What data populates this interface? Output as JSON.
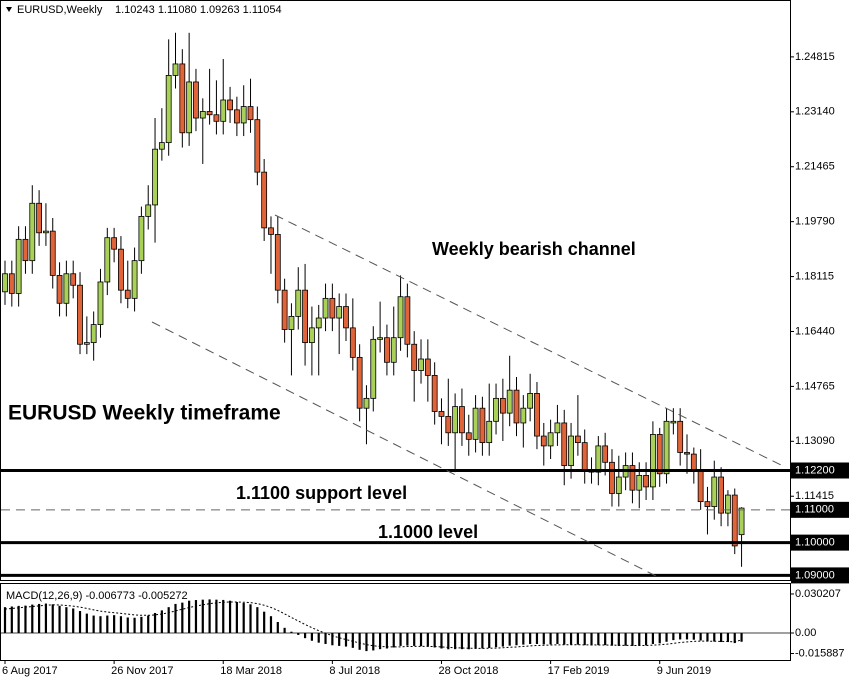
{
  "chart_data": [
    {
      "type": "candlestick",
      "title": "EURUSD,Weekly",
      "subtitle": "1.10243 1.11080 1.09263 1.11054",
      "annotations": [
        "Weekly bearish channel",
        "EURUSD Weekly timeframe",
        "1.1100 support level",
        "1.1000 level"
      ],
      "colors": {
        "up": "#a9d15a",
        "down": "#e0643a"
      },
      "ylim": [
        1.0886,
        1.2655
      ],
      "yticks": [
        1.24815,
        {
          "value": 1.2314,
          "label": "1.23140"
        },
        1.21465,
        {
          "value": 1.1979,
          "label": "1.19790"
        },
        1.18115,
        {
          "value": 1.1644,
          "label": "1.16440"
        },
        1.14765,
        {
          "value": 1.1309,
          "label": "1.13090"
        },
        1.11415
      ],
      "levels": [
        {
          "value": 1.122,
          "label": "1.12200",
          "style": "solid"
        },
        {
          "value": 1.11,
          "label": "1.11000",
          "style": "dashed"
        },
        {
          "value": 1.1,
          "label": "1.10000",
          "style": "solid"
        },
        {
          "value": 1.09,
          "label": "1.09000",
          "style": "solid"
        }
      ],
      "open": [
        1.1765,
        1.182,
        1.176,
        1.1925,
        1.186,
        1.2035,
        1.1945,
        1.195,
        1.1815,
        1.173,
        1.182,
        1.1785,
        1.1605,
        1.161,
        1.1665,
        1.1795,
        1.193,
        1.1895,
        1.177,
        1.1745,
        1.186,
        1.1995,
        1.203,
        1.22,
        1.222,
        1.2425,
        1.246,
        1.225,
        1.2405,
        1.2295,
        1.2315,
        1.2305,
        1.2285,
        1.235,
        1.232,
        1.228,
        1.233,
        1.229,
        1.213,
        1.196,
        1.194,
        1.177,
        1.165,
        1.169,
        1.177,
        1.161,
        1.1655,
        1.1685,
        1.1745,
        1.1685,
        1.172,
        1.1655,
        1.1565,
        1.141,
        1.144,
        1.162,
        1.1625,
        1.155,
        1.1625,
        1.175,
        1.1605,
        1.1525,
        1.156,
        1.151,
        1.14,
        1.1385,
        1.1335,
        1.1415,
        1.1335,
        1.1315,
        1.141,
        1.1305,
        1.137,
        1.144,
        1.1395,
        1.1465,
        1.1365,
        1.141,
        1.1455,
        1.1325,
        1.1295,
        1.1335,
        1.1365,
        1.1235,
        1.1325,
        1.1305,
        1.122,
        1.1215,
        1.1295,
        1.1245,
        1.115,
        1.12,
        1.1235,
        1.116,
        1.1205,
        1.117,
        1.133,
        1.121,
        1.1365,
        1.137,
        1.1275,
        1.127,
        1.122,
        1.1125,
        1.111,
        1.12,
        1.109,
        1.1145,
        1.10243
      ],
      "high": [
        1.186,
        1.186,
        1.1965,
        1.1965,
        1.209,
        1.2075,
        1.2035,
        1.199,
        1.1855,
        1.186,
        1.186,
        1.1825,
        1.169,
        1.1705,
        1.1835,
        1.196,
        1.196,
        1.1935,
        1.186,
        1.19,
        1.2025,
        1.209,
        1.2295,
        1.2325,
        1.2535,
        1.2555,
        1.2505,
        1.2555,
        1.2445,
        1.2355,
        1.2445,
        1.241,
        1.2475,
        1.239,
        1.236,
        1.2395,
        1.2415,
        1.233,
        1.217,
        1.1995,
        1.1995,
        1.1805,
        1.173,
        1.184,
        1.185,
        1.172,
        1.1725,
        1.179,
        1.179,
        1.176,
        1.176,
        1.1745,
        1.1605,
        1.148,
        1.166,
        1.1735,
        1.1665,
        1.172,
        1.1815,
        1.179,
        1.1645,
        1.162,
        1.162,
        1.155,
        1.144,
        1.15,
        1.1455,
        1.147,
        1.139,
        1.145,
        1.1445,
        1.1485,
        1.1485,
        1.15,
        1.157,
        1.1505,
        1.145,
        1.1515,
        1.149,
        1.1365,
        1.1375,
        1.142,
        1.1405,
        1.1365,
        1.145,
        1.1345,
        1.126,
        1.1325,
        1.1335,
        1.1285,
        1.1265,
        1.1275,
        1.1275,
        1.1245,
        1.1245,
        1.137,
        1.135,
        1.141,
        1.141,
        1.141,
        1.133,
        1.129,
        1.1285,
        1.117,
        1.125,
        1.123,
        1.116,
        1.1165,
        1.1108
      ],
      "low": [
        1.1725,
        1.172,
        1.172,
        1.182,
        1.182,
        1.1905,
        1.1905,
        1.1775,
        1.169,
        1.169,
        1.1745,
        1.1575,
        1.1575,
        1.1555,
        1.1625,
        1.1755,
        1.1855,
        1.173,
        1.1715,
        1.1705,
        1.182,
        1.1955,
        1.1915,
        1.2165,
        1.218,
        1.2385,
        1.2205,
        1.221,
        1.2255,
        1.2155,
        1.2275,
        1.2245,
        1.2245,
        1.228,
        1.224,
        1.224,
        1.225,
        1.209,
        1.192,
        1.182,
        1.173,
        1.161,
        1.151,
        1.165,
        1.154,
        1.151,
        1.151,
        1.1645,
        1.1645,
        1.1575,
        1.1615,
        1.1525,
        1.137,
        1.13,
        1.14,
        1.158,
        1.151,
        1.151,
        1.1585,
        1.1565,
        1.143,
        1.1485,
        1.143,
        1.136,
        1.13,
        1.1295,
        1.1215,
        1.1295,
        1.1265,
        1.1275,
        1.1265,
        1.1265,
        1.133,
        1.131,
        1.1355,
        1.1325,
        1.129,
        1.137,
        1.1285,
        1.1235,
        1.1255,
        1.1295,
        1.1175,
        1.1195,
        1.1265,
        1.118,
        1.118,
        1.1175,
        1.1205,
        1.111,
        1.111,
        1.116,
        1.112,
        1.1105,
        1.113,
        1.113,
        1.117,
        1.118,
        1.133,
        1.1235,
        1.121,
        1.118,
        1.11,
        1.1025,
        1.107,
        1.105,
        1.105,
        1.0965,
        1.09263
      ],
      "close": [
        1.182,
        1.176,
        1.1925,
        1.186,
        1.2035,
        1.1945,
        1.195,
        1.1815,
        1.173,
        1.182,
        1.1785,
        1.1605,
        1.161,
        1.1665,
        1.1795,
        1.193,
        1.1895,
        1.177,
        1.1745,
        1.186,
        1.1995,
        1.203,
        1.22,
        1.222,
        1.2425,
        1.246,
        1.225,
        1.2405,
        1.2295,
        1.2315,
        1.2305,
        1.2285,
        1.235,
        1.232,
        1.228,
        1.233,
        1.229,
        1.213,
        1.196,
        1.194,
        1.177,
        1.165,
        1.169,
        1.177,
        1.161,
        1.1655,
        1.1685,
        1.1745,
        1.1685,
        1.172,
        1.1655,
        1.1565,
        1.141,
        1.144,
        1.162,
        1.1625,
        1.155,
        1.1625,
        1.175,
        1.1605,
        1.1525,
        1.156,
        1.151,
        1.14,
        1.1385,
        1.1335,
        1.1415,
        1.1335,
        1.1315,
        1.141,
        1.1305,
        1.137,
        1.144,
        1.1395,
        1.1465,
        1.1365,
        1.141,
        1.1455,
        1.1325,
        1.1295,
        1.1335,
        1.1365,
        1.1235,
        1.1325,
        1.1305,
        1.122,
        1.1215,
        1.1295,
        1.1245,
        1.115,
        1.12,
        1.1235,
        1.116,
        1.1205,
        1.117,
        1.133,
        1.121,
        1.137,
        1.137,
        1.1275,
        1.127,
        1.122,
        1.1125,
        1.111,
        1.12,
        1.109,
        1.1145,
        1.099,
        1.11054
      ]
    },
    {
      "type": "macd",
      "title": "MACD(12,26,9) -0.006773 -0.005272",
      "ylim": [
        -0.0209,
        0.0387
      ],
      "yticks": [
        0.030207,
        {
          "value": 0,
          "label": "0.00"
        },
        -0.015887
      ],
      "xticks": [
        {
          "value": 0,
          "label": "6 Aug 2017"
        },
        {
          "value": 16,
          "label": "26 Nov 2017"
        },
        {
          "value": 32,
          "label": "18 Mar 2018"
        },
        {
          "value": 48,
          "label": "8 Jul 2018"
        },
        {
          "value": 64,
          "label": "28 Oct 2018"
        },
        {
          "value": 80,
          "label": "17 Feb 2019"
        },
        {
          "value": 96,
          "label": "9 Jun 2019"
        }
      ],
      "values": [
        0.02,
        0.0205,
        0.021,
        0.0212,
        0.022,
        0.0225,
        0.0228,
        0.0222,
        0.021,
        0.02,
        0.019,
        0.017,
        0.015,
        0.0135,
        0.013,
        0.0135,
        0.0138,
        0.013,
        0.012,
        0.0118,
        0.0125,
        0.0135,
        0.0155,
        0.0175,
        0.02,
        0.0225,
        0.0235,
        0.025,
        0.0255,
        0.0258,
        0.026,
        0.0258,
        0.0256,
        0.025,
        0.024,
        0.0232,
        0.0222,
        0.02,
        0.0165,
        0.013,
        0.0085,
        0.004,
        0.001,
        -0.0015,
        -0.004,
        -0.006,
        -0.0075,
        -0.0085,
        -0.0095,
        -0.01,
        -0.0105,
        -0.0115,
        -0.013,
        -0.014,
        -0.0135,
        -0.0125,
        -0.012,
        -0.0112,
        -0.01,
        -0.0098,
        -0.01,
        -0.0102,
        -0.0105,
        -0.0112,
        -0.012,
        -0.0126,
        -0.0125,
        -0.0125,
        -0.0126,
        -0.0122,
        -0.012,
        -0.0116,
        -0.011,
        -0.0105,
        -0.0098,
        -0.0095,
        -0.009,
        -0.0085,
        -0.0085,
        -0.0088,
        -0.0088,
        -0.0085,
        -0.009,
        -0.009,
        -0.009,
        -0.0094,
        -0.0096,
        -0.0094,
        -0.0094,
        -0.0098,
        -0.01,
        -0.0098,
        -0.01,
        -0.0098,
        -0.0096,
        -0.0085,
        -0.008,
        -0.0068,
        -0.0055,
        -0.005,
        -0.005,
        -0.0052,
        -0.0058,
        -0.0065,
        -0.0066,
        -0.007,
        -0.007,
        -0.0078,
        -0.006773
      ],
      "signal": [
        0.0185,
        0.019,
        0.0195,
        0.02,
        0.0205,
        0.021,
        0.0215,
        0.0218,
        0.0217,
        0.0213,
        0.0208,
        0.02,
        0.019,
        0.0179,
        0.0169,
        0.0162,
        0.0157,
        0.0152,
        0.0146,
        0.014,
        0.0137,
        0.0137,
        0.014,
        0.0147,
        0.0157,
        0.0171,
        0.0184,
        0.0197,
        0.0209,
        0.0218,
        0.0227,
        0.0233,
        0.0238,
        0.024,
        0.024,
        0.0238,
        0.0235,
        0.0228,
        0.0215,
        0.0198,
        0.0175,
        0.0148,
        0.012,
        0.0093,
        0.0066,
        0.0041,
        0.0018,
        -0.0002,
        -0.0021,
        -0.0037,
        -0.0051,
        -0.0064,
        -0.0077,
        -0.009,
        -0.0099,
        -0.0104,
        -0.0107,
        -0.0108,
        -0.0107,
        -0.0105,
        -0.0104,
        -0.0103,
        -0.0104,
        -0.0105,
        -0.0108,
        -0.0111,
        -0.0114,
        -0.0116,
        -0.0118,
        -0.0119,
        -0.0119,
        -0.0118,
        -0.0117,
        -0.0114,
        -0.0111,
        -0.0108,
        -0.0104,
        -0.01,
        -0.0097,
        -0.0095,
        -0.0093,
        -0.0092,
        -0.0091,
        -0.0091,
        -0.0091,
        -0.0092,
        -0.0092,
        -0.0093,
        -0.0093,
        -0.0094,
        -0.0095,
        -0.0096,
        -0.0096,
        -0.0097,
        -0.0097,
        -0.0094,
        -0.0091,
        -0.0087,
        -0.008,
        -0.0074,
        -0.0069,
        -0.0065,
        -0.0063,
        -0.0063,
        -0.0064,
        -0.0065,
        -0.0066,
        -0.0069,
        -0.005272
      ]
    }
  ]
}
